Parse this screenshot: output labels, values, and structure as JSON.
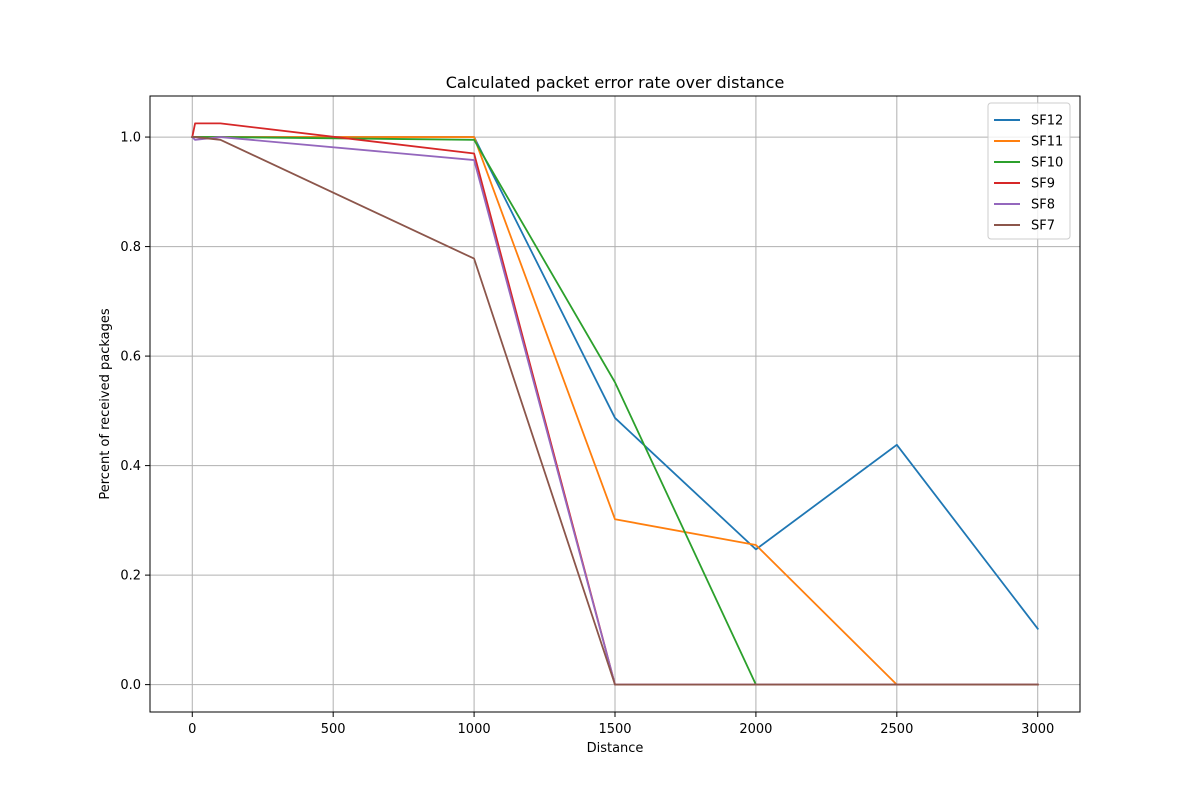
{
  "chart_data": {
    "type": "line",
    "title": "Calculated packet error rate over distance",
    "xlabel": "Distance",
    "ylabel": "Percent of received packages",
    "xlim": [
      -150,
      3150
    ],
    "ylim": [
      -0.05,
      1.075
    ],
    "xticks": [
      0,
      500,
      1000,
      1500,
      2000,
      2500,
      3000
    ],
    "yticks": [
      0.0,
      0.2,
      0.4,
      0.6,
      0.8,
      1.0
    ],
    "xtick_labels": [
      "0",
      "500",
      "1000",
      "1500",
      "2000",
      "2500",
      "3000"
    ],
    "ytick_labels": [
      "0.0",
      "0.2",
      "0.4",
      "0.6",
      "0.8",
      "1.0"
    ],
    "grid": true,
    "legend_position": "top-right",
    "x": [
      0,
      10,
      100,
      1000,
      1500,
      2000,
      2500,
      3000
    ],
    "series": [
      {
        "name": "SF12",
        "color": "#1f77b4",
        "values": [
          1.0,
          1.0,
          1.0,
          1.0,
          0.487,
          0.247,
          0.438,
          0.102
        ]
      },
      {
        "name": "SF11",
        "color": "#ff7f0e",
        "values": [
          1.0,
          1.0,
          1.0,
          1.0,
          0.302,
          0.255,
          0.0,
          0.0
        ]
      },
      {
        "name": "SF10",
        "color": "#2ca02c",
        "values": [
          1.0,
          1.0,
          1.0,
          0.995,
          0.552,
          0.0,
          0.0,
          0.0
        ]
      },
      {
        "name": "SF9",
        "color": "#d62728",
        "values": [
          1.0,
          1.025,
          1.025,
          0.97,
          0.0,
          0.0,
          0.0,
          0.0
        ]
      },
      {
        "name": "SF8",
        "color": "#9467bd",
        "values": [
          1.0,
          0.995,
          1.0,
          0.958,
          0.0,
          0.0,
          0.0,
          0.0
        ]
      },
      {
        "name": "SF7",
        "color": "#8c564b",
        "values": [
          1.0,
          1.0,
          0.995,
          0.778,
          0.0,
          0.0,
          0.0,
          0.0
        ]
      }
    ]
  }
}
